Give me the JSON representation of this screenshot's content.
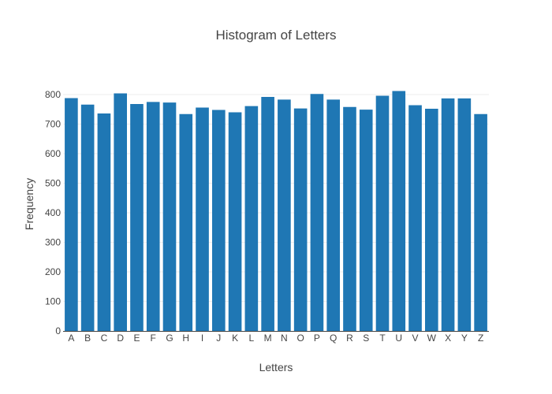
{
  "chart_data": {
    "type": "bar",
    "title": "Histogram of Letters",
    "xlabel": "Letters",
    "ylabel": "Frequency",
    "categories": [
      "A",
      "B",
      "C",
      "D",
      "E",
      "F",
      "G",
      "H",
      "I",
      "J",
      "K",
      "L",
      "M",
      "N",
      "O",
      "P",
      "Q",
      "R",
      "S",
      "T",
      "U",
      "V",
      "W",
      "X",
      "Y",
      "Z"
    ],
    "values": [
      788,
      766,
      736,
      804,
      768,
      775,
      773,
      734,
      756,
      748,
      740,
      761,
      792,
      783,
      753,
      802,
      783,
      758,
      749,
      796,
      812,
      764,
      752,
      787,
      787,
      734
    ],
    "ylim": [
      0,
      800
    ],
    "yticks": [
      0,
      100,
      200,
      300,
      400,
      500,
      600,
      700,
      800
    ],
    "bar_color": "#1f77b4",
    "grid": true,
    "legend": "none"
  }
}
